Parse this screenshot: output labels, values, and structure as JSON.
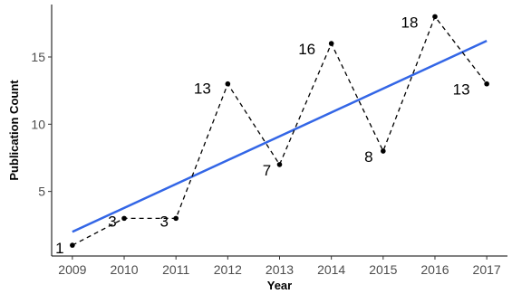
{
  "chart_data": {
    "type": "line",
    "xlabel": "Year",
    "ylabel": "Publication Count",
    "x": [
      2009,
      2010,
      2011,
      2012,
      2013,
      2014,
      2015,
      2016,
      2017
    ],
    "y": [
      1,
      3,
      3,
      13,
      7,
      16,
      8,
      18,
      13
    ],
    "point_labels": [
      "1",
      "3",
      "3",
      "13",
      "7",
      "16",
      "8",
      "18",
      "13"
    ],
    "x_ticks": [
      "2009",
      "2010",
      "2011",
      "2012",
      "2013",
      "2014",
      "2015",
      "2016",
      "2017"
    ],
    "y_ticks": [
      5,
      10,
      15
    ],
    "y_tick_labels": [
      "5",
      "10",
      "15"
    ],
    "xlim": [
      2008.6,
      2017.4
    ],
    "ylim": [
      0.2,
      18.9
    ],
    "grid": false,
    "legend": "none",
    "series": [
      {
        "kind": "line",
        "line_style": "dashed",
        "color": "#000000",
        "markers": true
      },
      {
        "kind": "trend",
        "line_style": "solid",
        "color": "#3366e6",
        "x": [
          2009,
          2017
        ],
        "y": [
          2.0,
          16.2
        ]
      }
    ]
  }
}
